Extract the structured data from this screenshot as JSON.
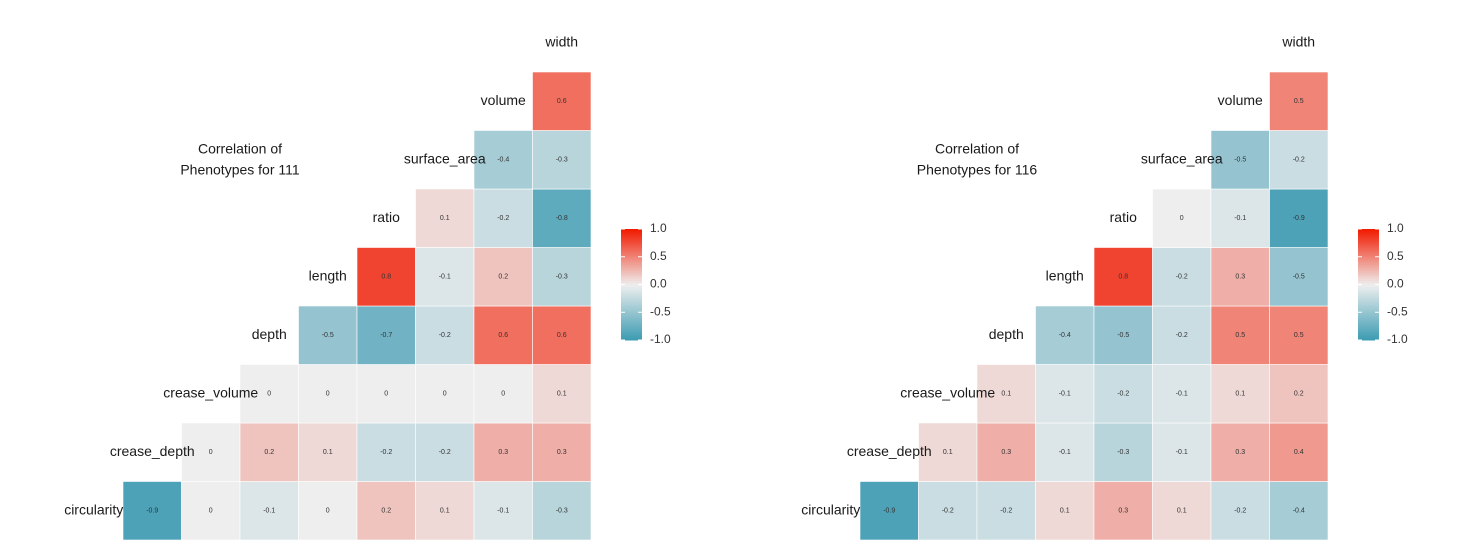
{
  "chart_data": [
    {
      "type": "heatmap",
      "title": [
        "Correlation of",
        "Phenotypes for 111"
      ],
      "labels": [
        "circularity",
        "crease_depth",
        "crease_volume",
        "depth",
        "length",
        "ratio",
        "surface_area",
        "volume",
        "width"
      ],
      "rows": [
        [
          -0.9,
          0,
          -0.1,
          0,
          0.2,
          0.1,
          -0.1,
          -0.3
        ],
        [
          0,
          0.2,
          0.1,
          -0.2,
          -0.2,
          0.3,
          0.3
        ],
        [
          0,
          0,
          0,
          0,
          0,
          0.1
        ],
        [
          -0.5,
          -0.7,
          -0.2,
          0.6,
          0.6
        ],
        [
          0.8,
          -0.1,
          0.2,
          -0.3
        ],
        [
          0.1,
          -0.2,
          -0.8
        ],
        [
          -0.4,
          -0.3
        ],
        [
          0.6
        ]
      ],
      "colors": {
        "low": "#3B9AB2",
        "mid": "#EEEEEE",
        "high": "#F21A00"
      },
      "clim": [
        -1,
        1
      ],
      "cticks": [
        {
          "value": 1,
          "label": "1.0"
        },
        0.5,
        {
          "value": 0,
          "label": "0.0"
        },
        -0.5,
        {
          "value": -1,
          "label": "-1.0"
        }
      ]
    },
    {
      "type": "heatmap",
      "title": [
        "Correlation of",
        "Phenotypes for 116"
      ],
      "labels": [
        "circularity",
        "crease_depth",
        "crease_volume",
        "depth",
        "length",
        "ratio",
        "surface_area",
        "volume",
        "width"
      ],
      "rows": [
        [
          -0.9,
          -0.2,
          -0.2,
          0.1,
          0.3,
          0.1,
          -0.2,
          -0.4
        ],
        [
          0.1,
          0.3,
          -0.1,
          -0.3,
          -0.1,
          0.3,
          0.4
        ],
        [
          0.1,
          -0.1,
          -0.2,
          -0.1,
          0.1,
          0.2
        ],
        [
          -0.4,
          -0.5,
          -0.2,
          0.5,
          0.5
        ],
        [
          0.8,
          -0.2,
          0.3,
          -0.5
        ],
        [
          0,
          -0.1,
          -0.9
        ],
        [
          -0.5,
          -0.2
        ],
        [
          0.5
        ]
      ],
      "colors": {
        "low": "#3B9AB2",
        "mid": "#EEEEEE",
        "high": "#F21A00"
      },
      "clim": [
        -1,
        1
      ],
      "cticks": [
        {
          "value": 1,
          "label": "1.0"
        },
        0.5,
        {
          "value": 0,
          "label": "0.0"
        },
        -0.5,
        {
          "value": -1,
          "label": "-1.0"
        }
      ]
    }
  ]
}
